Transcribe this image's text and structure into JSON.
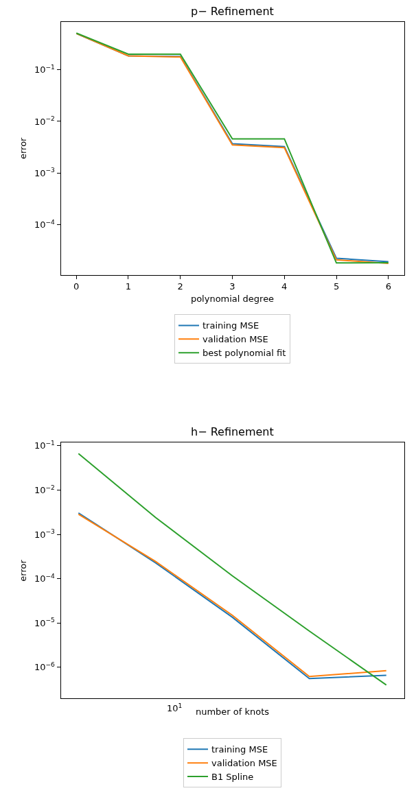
{
  "chart_data": [
    {
      "type": "line",
      "title": "p− Refinement",
      "xlabel": "polynomial degree",
      "ylabel": "error",
      "log": "y",
      "legend": "bottom",
      "marker": "none",
      "line_style": "solid",
      "x": [
        0,
        1,
        2,
        3,
        4,
        5,
        6
      ],
      "xlim": [
        -0.3,
        6.3
      ],
      "ylim": [
        1.08e-05,
        0.84
      ],
      "xticks": [
        0,
        1,
        2,
        3,
        4,
        5,
        6
      ],
      "yticks": [
        {
          "value": 0.1,
          "label": "10$^{−1}$"
        },
        {
          "value": 0.01,
          "label": "10$^{−2}$"
        },
        {
          "value": 0.001,
          "label": "10$^{−3}$"
        },
        {
          "value": 0.0001,
          "label": "10$^{−4}$"
        }
      ],
      "series": [
        {
          "name": "training MSE",
          "color": "#1f77b4",
          "values": [
            0.5,
            0.184,
            0.18,
            0.0037,
            0.00325,
            2.26e-05,
            1.94e-05
          ]
        },
        {
          "name": "validation MSE",
          "color": "#ff7f0e",
          "values": [
            0.5,
            0.185,
            0.176,
            0.0035,
            0.0031,
            2.1e-05,
            1.8e-05
          ]
        },
        {
          "name": "best polynomial fit",
          "color": "#2ca02c",
          "values": [
            0.51,
            0.2,
            0.2,
            0.00457,
            0.0046,
            1.83e-05,
            1.85e-05
          ]
        }
      ]
    },
    {
      "type": "line",
      "title": "h− Refinement",
      "xlabel": "number of knots",
      "ylabel": "error",
      "log": "y",
      "legend": "bottom",
      "marker": "none",
      "line_style": "solid",
      "categories": [
        null,
        null,
        null,
        null,
        null
      ],
      "annotations": [
        "10$^{1}$"
      ],
      "ylim": [
        1.97e-07,
        0.118
      ],
      "yticks": [
        {
          "value": 0.1,
          "label": "10$^{−1}$"
        },
        {
          "value": 0.01,
          "label": "10$^{−2}$"
        },
        {
          "value": 0.001,
          "label": "10$^{−3}$"
        },
        {
          "value": 0.0001,
          "label": "10$^{−4}$"
        },
        {
          "value": 1e-05,
          "label": "10$^{−5}$"
        },
        {
          "value": 1e-06,
          "label": "10$^{−6}$"
        }
      ],
      "series": [
        {
          "name": "training MSE",
          "color": "#1f77b4",
          "values": [
            0.00306,
            0.00023,
            1.35e-05,
            5.6e-07,
            6.6e-07
          ]
        },
        {
          "name": "validation MSE",
          "color": "#ff7f0e",
          "values": [
            0.00286,
            0.000247,
            1.5e-05,
            6.2e-07,
            8.4e-07
          ]
        },
        {
          "name": "B1 Spline",
          "color": "#2ca02c",
          "values": [
            0.0667,
            0.00243,
            0.000116,
            6.6e-06,
            4e-07
          ]
        }
      ]
    }
  ]
}
